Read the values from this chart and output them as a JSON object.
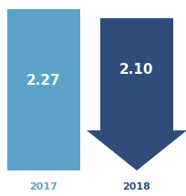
{
  "value_2017": "2.27",
  "value_2018": "2.10",
  "label_2017": "2017",
  "label_2018": "2018",
  "color_2017": "#5BA3C9",
  "color_2018": "#2E4D7B",
  "color_label_2017": "#5BA3C9",
  "color_label_2018": "#2E4D7B",
  "bg_color": "#FFFFFF",
  "value_fontsize": 11,
  "year_fontsize": 8,
  "fig_width": 2.04,
  "fig_height": 2.15
}
